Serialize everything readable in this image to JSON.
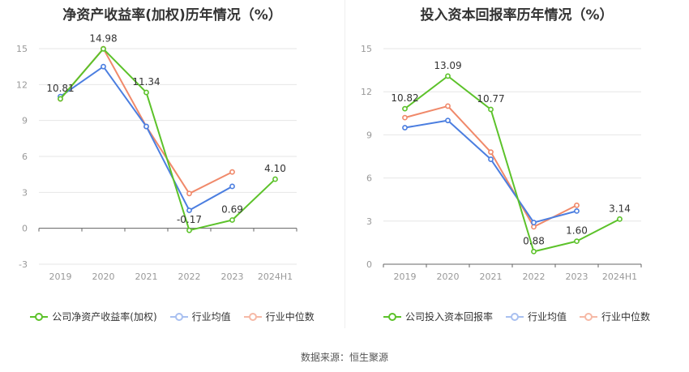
{
  "source_label": "数据来源：恒生聚源",
  "colors": {
    "company": "#5cc22a",
    "avg": "#4b7ee0",
    "median": "#f0896a",
    "grid": "#e6e6e6",
    "axis": "#999999"
  },
  "chart_data": [
    {
      "type": "line",
      "title": "净资产收益率(加权)历年情况（%）",
      "categories": [
        "2019",
        "2020",
        "2021",
        "2022",
        "2023",
        "2024H1"
      ],
      "ylim": [
        -3,
        15
      ],
      "yticks": [
        -3,
        0,
        3,
        6,
        9,
        12,
        15
      ],
      "series": [
        {
          "name": "公司净资产收益率(加权)",
          "key": "company",
          "values": [
            10.81,
            14.98,
            11.34,
            -0.17,
            0.69,
            4.1
          ],
          "labels": [
            "10.81",
            "14.98",
            "11.34",
            "-0.17",
            "0.69",
            "4.10"
          ]
        },
        {
          "name": "行业均值",
          "key": "avg",
          "values": [
            11.0,
            13.5,
            8.5,
            1.5,
            3.5,
            null
          ]
        },
        {
          "name": "行业中位数",
          "key": "median",
          "values": [
            10.8,
            15.0,
            8.5,
            2.9,
            4.7,
            null
          ]
        }
      ]
    },
    {
      "type": "line",
      "title": "投入资本回报率历年情况（%）",
      "categories": [
        "2019",
        "2020",
        "2021",
        "2022",
        "2023",
        "2024H1"
      ],
      "ylim": [
        0,
        15
      ],
      "yticks": [
        0,
        3,
        6,
        9,
        12,
        15
      ],
      "series": [
        {
          "name": "公司投入资本回报率",
          "key": "company",
          "values": [
            10.82,
            13.09,
            10.77,
            0.88,
            1.6,
            3.14
          ],
          "labels": [
            "10.82",
            "13.09",
            "10.77",
            "0.88",
            "1.60",
            "3.14"
          ]
        },
        {
          "name": "行业均值",
          "key": "avg",
          "values": [
            9.5,
            10.0,
            7.3,
            2.9,
            3.7,
            null
          ]
        },
        {
          "name": "行业中位数",
          "key": "median",
          "values": [
            10.2,
            11.0,
            7.8,
            2.6,
            4.1,
            null
          ]
        }
      ]
    }
  ]
}
